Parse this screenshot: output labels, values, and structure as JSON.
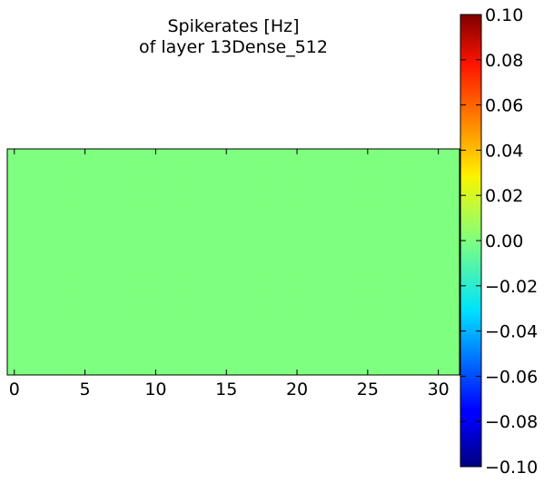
{
  "chart_data": {
    "type": "heatmap",
    "title_line1": "Spikerates [Hz]",
    "title_line2": "of layer 13Dense_512",
    "xlabel": "",
    "ylabel": "",
    "x_ticks": [
      "0",
      "5",
      "10",
      "15",
      "20",
      "25",
      "30"
    ],
    "xlim": [
      -0.5,
      31.5
    ],
    "rows": 16,
    "cols": 32,
    "cell_value": 0.0,
    "fill_color": "#7fff7f",
    "colormap": "jet",
    "colorbar": {
      "vmin": -0.1,
      "vmax": 0.1,
      "ticks": [
        "-0.10",
        "-0.08",
        "-0.06",
        "-0.04",
        "-0.02",
        "0.00",
        "0.02",
        "0.04",
        "0.06",
        "0.08",
        "0.10"
      ]
    },
    "grid": false
  }
}
